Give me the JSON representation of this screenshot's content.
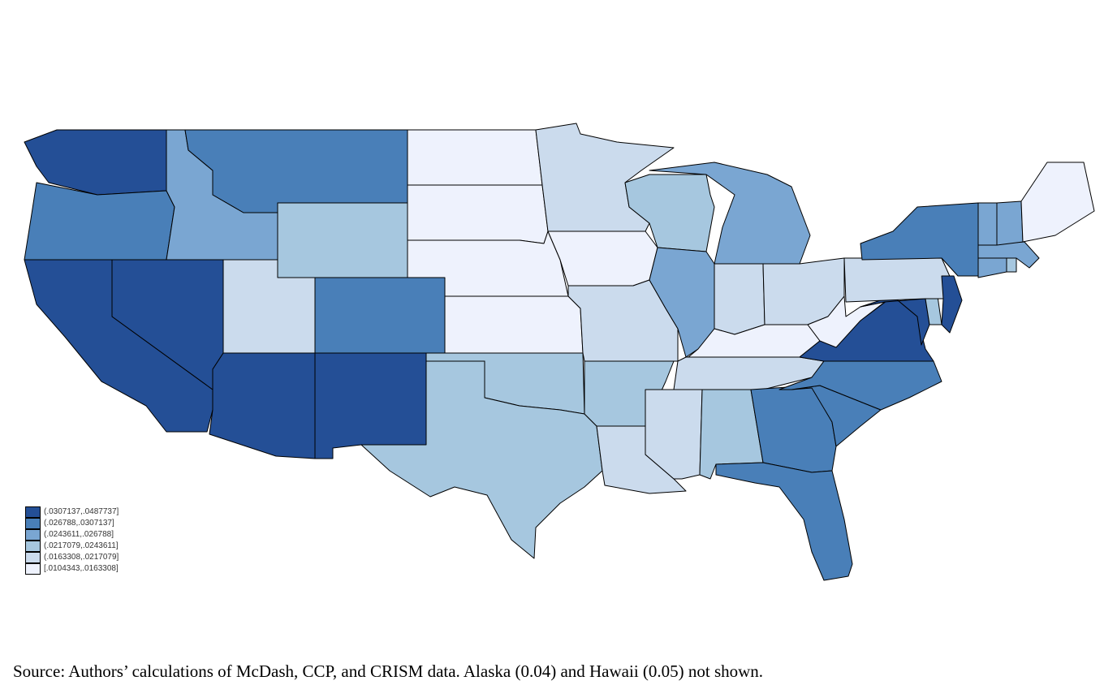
{
  "colors": {
    "bin1": "#244f96",
    "bin2": "#497fb8",
    "bin3": "#7aa6d2",
    "bin4": "#a6c7df",
    "bin5": "#cbdbed",
    "bin6": "#eef2fd"
  },
  "legend": [
    {
      "label": "(.0307137,.0487737]",
      "color_key": "bin1"
    },
    {
      "label": "(.026788,.0307137]",
      "color_key": "bin2"
    },
    {
      "label": "(.0243611,.026788]",
      "color_key": "bin3"
    },
    {
      "label": "(.0217079,.0243611]",
      "color_key": "bin4"
    },
    {
      "label": "(.0163308,.0217079]",
      "color_key": "bin5"
    },
    {
      "label": "[.0104343,.0163308]",
      "color_key": "bin6"
    }
  ],
  "states": [
    {
      "name": "WA",
      "bin": "bin1"
    },
    {
      "name": "OR",
      "bin": "bin2"
    },
    {
      "name": "CA",
      "bin": "bin1"
    },
    {
      "name": "NV",
      "bin": "bin1"
    },
    {
      "name": "ID",
      "bin": "bin3"
    },
    {
      "name": "MT",
      "bin": "bin2"
    },
    {
      "name": "WY",
      "bin": "bin4"
    },
    {
      "name": "UT",
      "bin": "bin5"
    },
    {
      "name": "CO",
      "bin": "bin2"
    },
    {
      "name": "AZ",
      "bin": "bin1"
    },
    {
      "name": "NM",
      "bin": "bin1"
    },
    {
      "name": "ND",
      "bin": "bin6"
    },
    {
      "name": "SD",
      "bin": "bin6"
    },
    {
      "name": "NE",
      "bin": "bin6"
    },
    {
      "name": "KS",
      "bin": "bin6"
    },
    {
      "name": "OK",
      "bin": "bin4"
    },
    {
      "name": "TX",
      "bin": "bin4"
    },
    {
      "name": "MN",
      "bin": "bin5"
    },
    {
      "name": "IA",
      "bin": "bin6"
    },
    {
      "name": "MO",
      "bin": "bin5"
    },
    {
      "name": "AR",
      "bin": "bin4"
    },
    {
      "name": "LA",
      "bin": "bin5"
    },
    {
      "name": "WI",
      "bin": "bin4"
    },
    {
      "name": "IL",
      "bin": "bin3"
    },
    {
      "name": "MI",
      "bin": "bin3"
    },
    {
      "name": "IN",
      "bin": "bin5"
    },
    {
      "name": "OH",
      "bin": "bin5"
    },
    {
      "name": "KY",
      "bin": "bin6"
    },
    {
      "name": "TN",
      "bin": "bin5"
    },
    {
      "name": "MS",
      "bin": "bin5"
    },
    {
      "name": "AL",
      "bin": "bin4"
    },
    {
      "name": "GA",
      "bin": "bin2"
    },
    {
      "name": "FL",
      "bin": "bin2"
    },
    {
      "name": "SC",
      "bin": "bin2"
    },
    {
      "name": "NC",
      "bin": "bin2"
    },
    {
      "name": "VA",
      "bin": "bin1"
    },
    {
      "name": "WV",
      "bin": "bin6"
    },
    {
      "name": "PA",
      "bin": "bin5"
    },
    {
      "name": "NY",
      "bin": "bin2"
    },
    {
      "name": "NJ",
      "bin": "bin1"
    },
    {
      "name": "DE",
      "bin": "bin4"
    },
    {
      "name": "MD",
      "bin": "bin1"
    },
    {
      "name": "CT",
      "bin": "bin3"
    },
    {
      "name": "RI",
      "bin": "bin4"
    },
    {
      "name": "MA",
      "bin": "bin3"
    },
    {
      "name": "VT",
      "bin": "bin3"
    },
    {
      "name": "NH",
      "bin": "bin3"
    },
    {
      "name": "ME",
      "bin": "bin6"
    }
  ],
  "caption": "Source: Authors’ calculations of McDash, CCP, and CRISM data. Alaska (0.04) and Hawaii (0.05) not shown."
}
